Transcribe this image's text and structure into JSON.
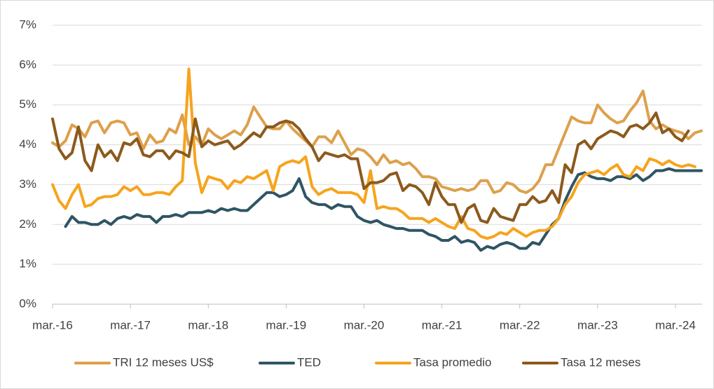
{
  "chart_data": {
    "type": "line",
    "categories": [
      "mar.-16",
      null,
      null,
      null,
      null,
      null,
      null,
      null,
      null,
      null,
      null,
      null,
      "mar.-17",
      null,
      null,
      null,
      null,
      null,
      null,
      null,
      null,
      null,
      null,
      null,
      "mar.-18",
      null,
      null,
      null,
      null,
      null,
      null,
      null,
      null,
      null,
      null,
      null,
      "mar.-19",
      null,
      null,
      null,
      null,
      null,
      null,
      null,
      null,
      null,
      null,
      null,
      "mar.-20",
      null,
      null,
      null,
      null,
      null,
      null,
      null,
      null,
      null,
      null,
      null,
      "mar.-21",
      null,
      null,
      null,
      null,
      null,
      null,
      null,
      null,
      null,
      null,
      null,
      "mar.-22",
      null,
      null,
      null,
      null,
      null,
      null,
      null,
      null,
      null,
      null,
      null,
      "mar.-23",
      null,
      null,
      null,
      null,
      null,
      null,
      null,
      null,
      null,
      null,
      null,
      "mar.-24",
      null,
      null,
      null,
      null
    ],
    "series": [
      {
        "name": "TRI 12 meses US$",
        "color": "#DDA04C",
        "values": [
          4.05,
          3.95,
          4.1,
          4.5,
          4.4,
          4.2,
          4.55,
          4.6,
          4.3,
          4.55,
          4.6,
          4.55,
          4.25,
          4.3,
          3.9,
          4.25,
          4.05,
          4.1,
          4.4,
          4.3,
          4.75,
          4.0,
          4.2,
          4.0,
          4.4,
          4.25,
          4.15,
          4.25,
          4.35,
          4.25,
          4.5,
          4.95,
          4.7,
          4.45,
          4.4,
          4.4,
          4.6,
          4.4,
          4.25,
          4.1,
          3.95,
          4.2,
          4.2,
          4.05,
          4.35,
          4.05,
          3.75,
          3.9,
          3.85,
          3.7,
          3.5,
          3.75,
          3.55,
          3.6,
          3.5,
          3.55,
          3.4,
          3.2,
          3.2,
          3.15,
          2.95,
          2.9,
          2.85,
          2.9,
          2.85,
          2.9,
          3.1,
          3.1,
          2.8,
          2.85,
          3.05,
          3.0,
          2.85,
          2.8,
          2.9,
          3.1,
          3.5,
          3.5,
          3.9,
          4.3,
          4.7,
          4.6,
          4.55,
          4.55,
          5.0,
          4.8,
          4.65,
          4.55,
          4.6,
          4.85,
          5.05,
          5.35,
          4.6,
          4.4,
          4.5,
          4.4,
          4.35,
          4.3,
          4.15,
          4.3,
          4.35
        ]
      },
      {
        "name": "TED",
        "color": "#2E5564",
        "values": [
          null,
          null,
          1.95,
          2.2,
          2.05,
          2.05,
          2.0,
          2.0,
          2.1,
          2.0,
          2.15,
          2.2,
          2.15,
          2.25,
          2.2,
          2.2,
          2.05,
          2.2,
          2.2,
          2.25,
          2.2,
          2.3,
          2.3,
          2.3,
          2.35,
          2.3,
          2.4,
          2.35,
          2.4,
          2.35,
          2.35,
          2.5,
          2.65,
          2.8,
          2.8,
          2.7,
          2.75,
          2.85,
          3.15,
          2.7,
          2.55,
          2.5,
          2.5,
          2.4,
          2.5,
          2.45,
          2.45,
          2.2,
          2.1,
          2.05,
          2.1,
          2.0,
          1.95,
          1.9,
          1.9,
          1.85,
          1.85,
          1.85,
          1.75,
          1.7,
          1.6,
          1.6,
          1.7,
          1.55,
          1.6,
          1.55,
          1.35,
          1.45,
          1.4,
          1.5,
          1.55,
          1.5,
          1.4,
          1.4,
          1.55,
          1.5,
          1.75,
          2.0,
          2.15,
          2.6,
          2.95,
          3.25,
          3.3,
          3.2,
          3.15,
          3.15,
          3.1,
          3.2,
          3.2,
          3.15,
          3.25,
          3.1,
          3.2,
          3.35,
          3.35,
          3.4,
          3.35,
          3.35,
          3.35,
          3.35,
          3.35
        ]
      },
      {
        "name": "Tasa promedio",
        "color": "#F6A41E",
        "values": [
          3.0,
          2.6,
          2.4,
          2.75,
          3.0,
          2.45,
          2.5,
          2.65,
          2.7,
          2.7,
          2.75,
          2.95,
          2.85,
          2.95,
          2.75,
          2.75,
          2.8,
          2.8,
          2.75,
          2.95,
          3.1,
          5.9,
          3.55,
          2.8,
          3.2,
          3.15,
          3.1,
          2.9,
          3.1,
          3.05,
          3.2,
          3.15,
          3.25,
          3.35,
          2.85,
          3.45,
          3.55,
          3.6,
          3.55,
          3.7,
          2.95,
          2.75,
          2.85,
          2.9,
          2.8,
          2.8,
          2.8,
          2.75,
          2.55,
          3.35,
          2.4,
          2.45,
          2.4,
          2.4,
          2.3,
          2.15,
          2.15,
          2.15,
          2.05,
          2.15,
          2.05,
          1.95,
          1.9,
          2.2,
          1.9,
          1.85,
          1.7,
          1.65,
          1.7,
          1.8,
          1.75,
          1.9,
          1.8,
          1.7,
          1.8,
          1.85,
          1.85,
          1.95,
          2.15,
          2.5,
          2.7,
          3.05,
          3.25,
          3.3,
          3.35,
          3.25,
          3.4,
          3.5,
          3.25,
          3.2,
          3.45,
          3.35,
          3.65,
          3.6,
          3.5,
          3.6,
          3.5,
          3.45,
          3.5,
          3.45,
          null
        ]
      },
      {
        "name": "Tasa 12 meses",
        "color": "#8C5A1C",
        "values": [
          4.65,
          3.9,
          3.65,
          3.8,
          4.45,
          3.6,
          3.35,
          4.0,
          3.7,
          3.85,
          3.6,
          4.05,
          4.0,
          4.15,
          3.75,
          3.7,
          3.85,
          3.85,
          3.65,
          3.85,
          3.8,
          3.7,
          4.65,
          3.95,
          4.1,
          4.0,
          4.05,
          4.1,
          3.9,
          4.0,
          4.15,
          4.3,
          4.2,
          4.45,
          4.45,
          4.55,
          4.6,
          4.55,
          4.4,
          4.15,
          3.95,
          3.6,
          3.8,
          3.75,
          3.7,
          3.75,
          3.65,
          3.65,
          2.9,
          3.05,
          3.05,
          3.1,
          3.25,
          3.3,
          2.85,
          3.0,
          2.95,
          2.8,
          2.5,
          3.05,
          2.7,
          2.5,
          2.5,
          2.05,
          2.4,
          2.5,
          2.1,
          2.05,
          2.4,
          2.2,
          2.15,
          2.1,
          2.5,
          2.5,
          2.7,
          2.55,
          2.6,
          2.85,
          2.55,
          3.5,
          3.3,
          4.0,
          4.1,
          3.9,
          4.15,
          4.25,
          4.35,
          4.3,
          4.2,
          4.45,
          4.5,
          4.4,
          4.55,
          4.8,
          4.3,
          4.4,
          4.2,
          4.1,
          4.35,
          null,
          null
        ]
      }
    ],
    "ylim": [
      0,
      7
    ],
    "yticks": [
      {
        "value": 0,
        "label": "0%"
      },
      {
        "value": 1,
        "label": "1%"
      },
      {
        "value": 2,
        "label": "2%"
      },
      {
        "value": 3,
        "label": "3%"
      },
      {
        "value": 4,
        "label": "4%"
      },
      {
        "value": 5,
        "label": "5%"
      },
      {
        "value": 6,
        "label": "6%"
      },
      {
        "value": 7,
        "label": "7%"
      }
    ],
    "grid": true,
    "legend": "bottom"
  }
}
